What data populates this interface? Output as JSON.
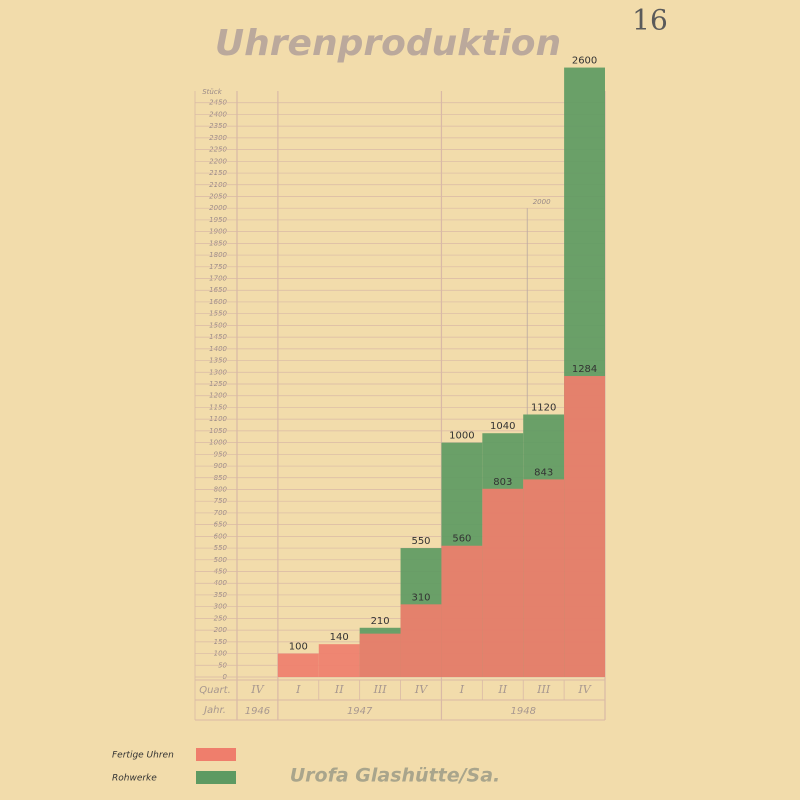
{
  "page_number": "16",
  "footer": "Urofa Glashütte/Sa.",
  "chart_data": {
    "type": "overlap-bar",
    "title": "Uhrenproduktion",
    "y_label": "Stück",
    "row_labels": [
      "Quart.",
      "Jahr."
    ],
    "categories": [
      "IV",
      "I",
      "II",
      "III",
      "IV",
      "I",
      "II",
      "III",
      "IV"
    ],
    "groups": [
      {
        "label": "1946",
        "count": 1
      },
      {
        "label": "1947",
        "count": 4
      },
      {
        "label": "1948",
        "count": 4
      }
    ],
    "series": [
      {
        "name": "Rohwerke",
        "color": "#5e9a62",
        "values": [
          null,
          null,
          null,
          210,
          550,
          1000,
          1040,
          1120,
          2600
        ],
        "value_labels": [
          null,
          null,
          null,
          "210",
          "550",
          "1000",
          "1040",
          "1120",
          "2600"
        ]
      },
      {
        "name": "Fertige Uhren",
        "color": "#ef7e6c",
        "values": [
          null,
          100,
          140,
          185,
          310,
          560,
          803,
          843,
          1284
        ],
        "value_labels": [
          null,
          "100",
          "140",
          null,
          "310",
          "560",
          "803",
          "843",
          "1284"
        ]
      }
    ],
    "legend_order": [
      1,
      0
    ],
    "annotations": [
      {
        "text": "2000",
        "value": 2000,
        "category": 7
      }
    ],
    "ylim": [
      0,
      2500
    ],
    "yticks": [
      0,
      50,
      100,
      150,
      200,
      250,
      300,
      350,
      400,
      450,
      500,
      550,
      600,
      650,
      700,
      750,
      800,
      850,
      900,
      950,
      1000,
      1050,
      1100,
      1150,
      1200,
      1250,
      1300,
      1350,
      1400,
      1450,
      1500,
      1550,
      1600,
      1650,
      1700,
      1750,
      1800,
      1850,
      1900,
      1950,
      2000,
      2050,
      2100,
      2150,
      2200,
      2250,
      2300,
      2350,
      2400,
      2450
    ],
    "grid": true
  }
}
